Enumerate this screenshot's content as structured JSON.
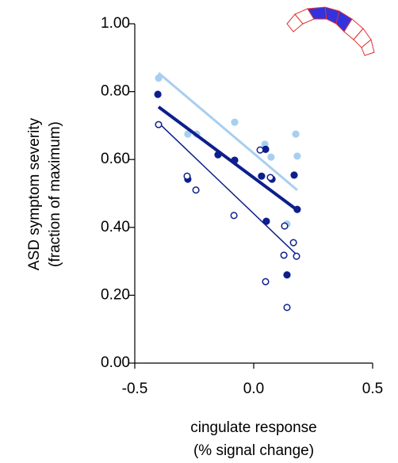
{
  "chart_data": {
    "type": "scatter",
    "xlabel": [
      "cingulate response",
      "(% signal change)"
    ],
    "ylabel": [
      "ASD symptom severity",
      "(fraction of maximum)"
    ],
    "xlim": [
      -0.5,
      0.5
    ],
    "xticks": [
      {
        "value": -0.5,
        "label": "-0.5"
      },
      {
        "value": 0,
        "label": "0.0"
      },
      {
        "value": 0.5,
        "label": "0.5"
      }
    ],
    "ylim": [
      0,
      1
    ],
    "yticks": [
      {
        "value": 0,
        "label": "0.00"
      },
      {
        "value": 0.2,
        "label": "0.20"
      },
      {
        "value": 0.4,
        "label": "0.40"
      },
      {
        "value": 0.6,
        "label": "0.60"
      },
      {
        "value": 0.8,
        "label": "0.80"
      },
      {
        "value": 1,
        "label": "1.00"
      }
    ],
    "series": [
      {
        "color": "#a8cff0",
        "marker": "filled",
        "x": [
          -0.4,
          -0.277,
          -0.24,
          -0.08,
          0.047,
          0.073,
          0.14,
          0.177,
          0.183
        ],
        "values": [
          0.84,
          0.675,
          0.675,
          0.71,
          0.645,
          0.607,
          0.41,
          0.675,
          0.61
        ],
        "trend_x": [
          -0.4,
          0.183
        ],
        "trend_y": [
          0.855,
          0.51
        ],
        "line_width": 3
      },
      {
        "color": "#0d1f8c",
        "marker": "filled",
        "x": [
          -0.403,
          -0.277,
          -0.15,
          -0.08,
          0.033,
          0.05,
          0.053,
          0.077,
          0.14,
          0.17,
          0.183
        ],
        "values": [
          0.792,
          0.542,
          0.614,
          0.598,
          0.551,
          0.63,
          0.418,
          0.542,
          0.26,
          0.554,
          0.453
        ],
        "trend_x": [
          -0.4,
          0.183
        ],
        "trend_y": [
          0.755,
          0.451
        ],
        "line_width": 4
      },
      {
        "color": "#0d1f8c",
        "marker": "open",
        "x": [
          -0.4,
          -0.28,
          -0.243,
          -0.083,
          0.027,
          0.05,
          0.07,
          0.13,
          0.127,
          0.14,
          0.167,
          0.18
        ],
        "values": [
          0.703,
          0.551,
          0.51,
          0.435,
          0.628,
          0.24,
          0.547,
          0.404,
          0.318,
          0.164,
          0.355,
          0.315
        ],
        "trend_x": [
          -0.4,
          0.183
        ],
        "trend_y": [
          0.708,
          0.318
        ],
        "line_width": 1.5
      }
    ]
  }
}
